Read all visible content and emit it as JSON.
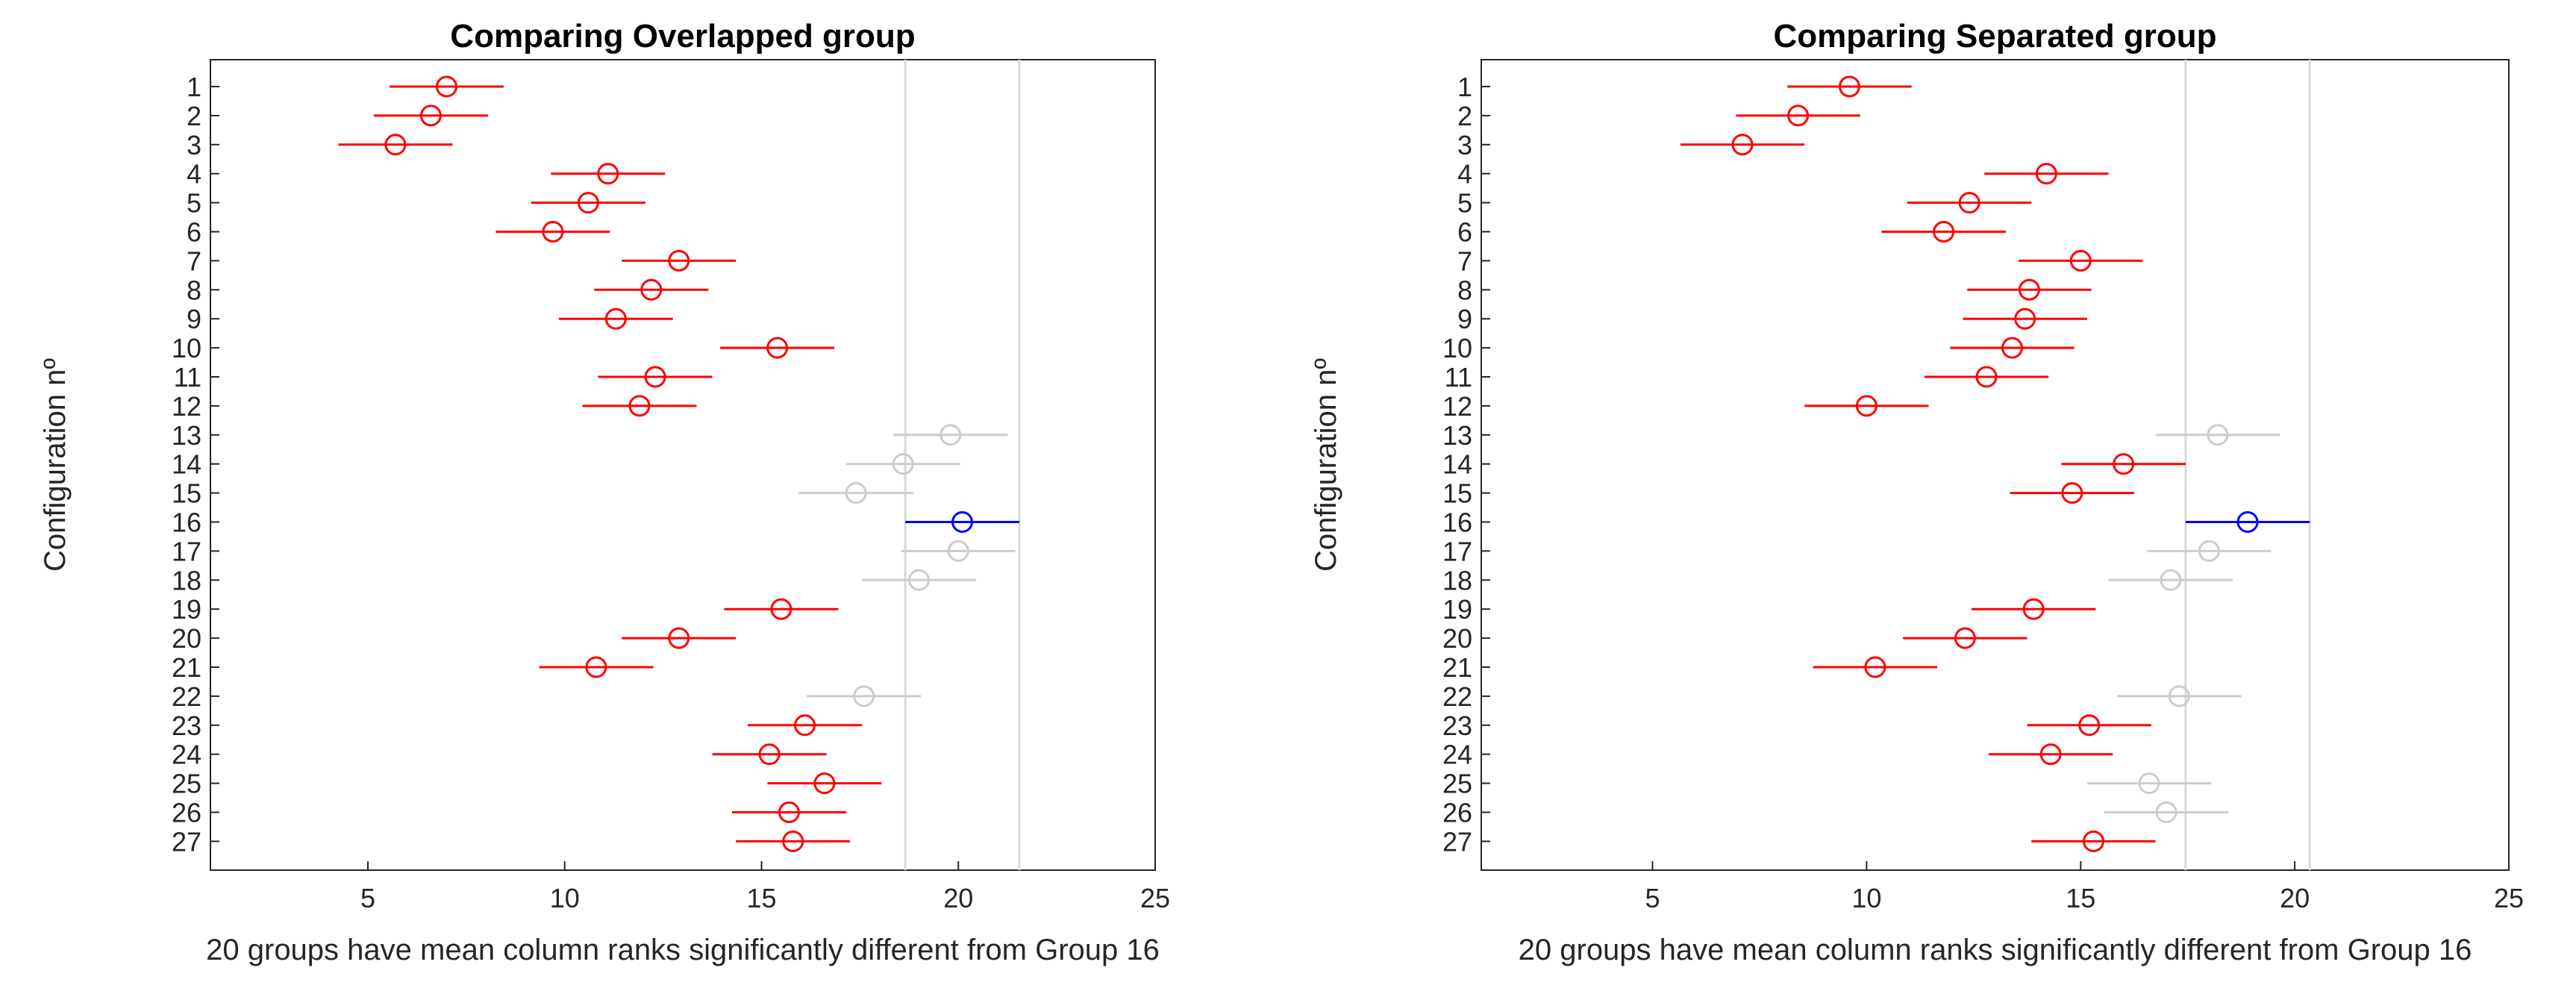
{
  "chart_data": [
    {
      "type": "multiple-comparison",
      "title": "Comparing Overlapped group",
      "xlabel": "20 groups have mean column ranks significantly different from Group 16",
      "ylabel": "Configuration nº",
      "xlim": [
        1,
        25
      ],
      "xticks": [
        5,
        10,
        15,
        20,
        25
      ],
      "categories": [
        "1",
        "2",
        "3",
        "4",
        "5",
        "6",
        "7",
        "8",
        "9",
        "10",
        "11",
        "12",
        "13",
        "14",
        "15",
        "16",
        "17",
        "18",
        "19",
        "20",
        "21",
        "22",
        "23",
        "24",
        "25",
        "26",
        "27"
      ],
      "means": [
        7.0,
        6.6,
        5.7,
        11.1,
        10.6,
        9.7,
        12.9,
        12.2,
        11.3,
        15.4,
        12.3,
        11.9,
        19.8,
        18.6,
        17.4,
        20.1,
        20.0,
        19.0,
        15.5,
        12.9,
        10.8,
        17.6,
        16.1,
        15.2,
        16.6,
        15.7,
        15.8
      ],
      "halfwidth": 1.45,
      "selected_group": 16,
      "reference_lines": [
        18.65,
        21.55
      ],
      "status": [
        "different",
        "different",
        "different",
        "different",
        "different",
        "different",
        "different",
        "different",
        "different",
        "different",
        "different",
        "different",
        "not-different",
        "not-different",
        "not-different",
        "selected",
        "not-different",
        "not-different",
        "different",
        "different",
        "different",
        "not-different",
        "different",
        "different",
        "different",
        "different",
        "different"
      ],
      "colors": {
        "different": "#ff0000",
        "not-different": "#cccccc",
        "selected": "#0000ff",
        "refline": "#d9d9d9"
      }
    },
    {
      "type": "multiple-comparison",
      "title": "Comparing Separated group",
      "xlabel": "20 groups have mean column ranks significantly different from Group 16",
      "ylabel": "Configuration nº",
      "xlim": [
        1,
        25
      ],
      "xticks": [
        5,
        10,
        15,
        20,
        25
      ],
      "categories": [
        "1",
        "2",
        "3",
        "4",
        "5",
        "6",
        "7",
        "8",
        "9",
        "10",
        "11",
        "12",
        "13",
        "14",
        "15",
        "16",
        "17",
        "18",
        "19",
        "20",
        "21",
        "22",
        "23",
        "24",
        "25",
        "26",
        "27"
      ],
      "means": [
        9.6,
        8.4,
        7.1,
        14.2,
        12.4,
        11.8,
        15.0,
        13.8,
        13.7,
        13.4,
        12.8,
        10.0,
        18.2,
        16.0,
        14.8,
        18.9,
        18.0,
        17.1,
        13.9,
        12.3,
        10.2,
        17.3,
        15.2,
        14.3,
        16.6,
        17.0,
        15.3
      ],
      "halfwidth": 1.45,
      "selected_group": 16,
      "reference_lines": [
        17.45,
        20.35
      ],
      "status": [
        "different",
        "different",
        "different",
        "different",
        "different",
        "different",
        "different",
        "different",
        "different",
        "different",
        "different",
        "different",
        "not-different",
        "different",
        "different",
        "selected",
        "not-different",
        "not-different",
        "different",
        "different",
        "different",
        "not-different",
        "different",
        "different",
        "not-different",
        "not-different",
        "different"
      ],
      "colors": {
        "different": "#ff0000",
        "not-different": "#cccccc",
        "selected": "#0000ff",
        "refline": "#d9d9d9"
      }
    }
  ]
}
